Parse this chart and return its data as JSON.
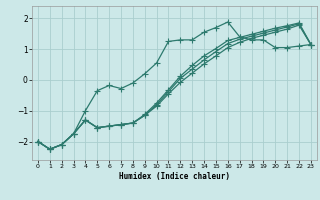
{
  "xlabel": "Humidex (Indice chaleur)",
  "bg_color": "#cce8e8",
  "line_color": "#2d7a6e",
  "grid_color": "#aacece",
  "xlim": [
    -0.5,
    23.5
  ],
  "ylim": [
    -2.6,
    2.4
  ],
  "xticks": [
    0,
    1,
    2,
    3,
    4,
    5,
    6,
    7,
    8,
    9,
    10,
    11,
    12,
    13,
    14,
    15,
    16,
    17,
    18,
    19,
    20,
    21,
    22,
    23
  ],
  "yticks": [
    -2,
    -1,
    0,
    1,
    2
  ],
  "line1_x": [
    0,
    1,
    2,
    3,
    4,
    5,
    6,
    7,
    8,
    9,
    10,
    11,
    12,
    13,
    14,
    15,
    16,
    17,
    18,
    19,
    20,
    21,
    22,
    23
  ],
  "line1_y": [
    -2.0,
    -2.25,
    -2.1,
    -1.75,
    -1.0,
    -0.35,
    -0.18,
    -0.28,
    -0.1,
    0.2,
    0.55,
    1.25,
    1.3,
    1.3,
    1.55,
    1.7,
    1.88,
    1.4,
    1.3,
    1.3,
    1.05,
    1.05,
    1.1,
    1.15
  ],
  "line2_x": [
    0,
    1,
    2,
    3,
    4,
    5,
    6,
    7,
    8,
    9,
    10,
    11,
    12,
    13,
    14,
    15,
    16,
    17,
    18,
    19,
    20,
    21,
    22,
    23
  ],
  "line2_y": [
    -2.0,
    -2.25,
    -2.1,
    -1.75,
    -1.3,
    -1.55,
    -1.5,
    -1.45,
    -1.4,
    -1.15,
    -0.85,
    -0.45,
    -0.08,
    0.22,
    0.52,
    0.78,
    1.05,
    1.22,
    1.35,
    1.45,
    1.55,
    1.65,
    1.78,
    1.15
  ],
  "line3_x": [
    0,
    1,
    2,
    3,
    4,
    5,
    6,
    7,
    8,
    9,
    10,
    11,
    12,
    13,
    14,
    15,
    16,
    17,
    18,
    19,
    20,
    21,
    22,
    23
  ],
  "line3_y": [
    -2.0,
    -2.25,
    -2.1,
    -1.75,
    -1.3,
    -1.55,
    -1.5,
    -1.45,
    -1.4,
    -1.15,
    -0.8,
    -0.38,
    0.05,
    0.35,
    0.65,
    0.92,
    1.18,
    1.32,
    1.42,
    1.52,
    1.62,
    1.72,
    1.82,
    1.15
  ],
  "line4_x": [
    0,
    1,
    2,
    3,
    4,
    5,
    6,
    7,
    8,
    9,
    10,
    11,
    12,
    13,
    14,
    15,
    16,
    17,
    18,
    19,
    20,
    21,
    22,
    23
  ],
  "line4_y": [
    -2.0,
    -2.25,
    -2.1,
    -1.75,
    -1.3,
    -1.55,
    -1.5,
    -1.45,
    -1.4,
    -1.12,
    -0.75,
    -0.32,
    0.12,
    0.47,
    0.78,
    1.02,
    1.28,
    1.38,
    1.48,
    1.58,
    1.68,
    1.76,
    1.85,
    1.15
  ]
}
